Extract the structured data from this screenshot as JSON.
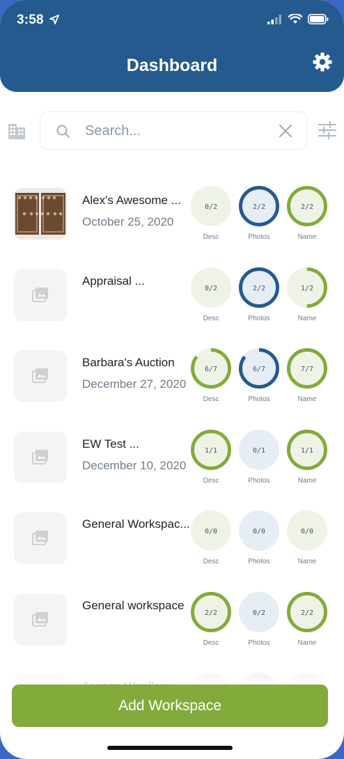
{
  "status_bar": {
    "time": "3:58"
  },
  "header": {
    "title": "Dashboard"
  },
  "search": {
    "placeholder": "Search..."
  },
  "labels": {
    "desc": "Desc",
    "photos": "Photos",
    "name": "Name"
  },
  "colors": {
    "header": "#245a8e",
    "green": "#82ab3b",
    "blue": "#245a8e",
    "green_fill": "#eef3e6",
    "blue_fill": "#e6edf4"
  },
  "workspaces": [
    {
      "title": "Alex's Awesome ...",
      "date": "October 25, 2020",
      "has_photo": true,
      "desc": {
        "text": "0/2",
        "progress": 0
      },
      "photos": {
        "text": "2/2",
        "progress": 1
      },
      "name": {
        "text": "2/2",
        "progress": 1
      }
    },
    {
      "title": "Appraisal ...",
      "date": "",
      "has_photo": false,
      "desc": {
        "text": "0/2",
        "progress": 0
      },
      "photos": {
        "text": "2/2",
        "progress": 1
      },
      "name": {
        "text": "1/2",
        "progress": 0.5
      }
    },
    {
      "title": "Barbara's Auction",
      "date": "December 27, 2020",
      "has_photo": false,
      "desc": {
        "text": "6/7",
        "progress": 0.857
      },
      "photos": {
        "text": "6/7",
        "progress": 0.857
      },
      "name": {
        "text": "7/7",
        "progress": 1
      }
    },
    {
      "title": "EW Test ...",
      "date": "December 10, 2020",
      "has_photo": false,
      "desc": {
        "text": "1/1",
        "progress": 1
      },
      "photos": {
        "text": "0/1",
        "progress": 0
      },
      "name": {
        "text": "1/1",
        "progress": 1
      }
    },
    {
      "title": "General Workspac...",
      "date": "",
      "has_photo": false,
      "desc": {
        "text": "0/0",
        "progress": 0
      },
      "photos": {
        "text": "0/0",
        "progress": 0
      },
      "name": {
        "text": "0/0",
        "progress": 0
      }
    },
    {
      "title": "General workspace",
      "date": "",
      "has_photo": false,
      "desc": {
        "text": "2/2",
        "progress": 1
      },
      "photos": {
        "text": "0/2",
        "progress": 0
      },
      "name": {
        "text": "2/2",
        "progress": 1
      }
    },
    {
      "title": "Joanna Woollam",
      "date": "",
      "has_photo": false,
      "desc": {
        "text": "",
        "progress": 0
      },
      "photos": {
        "text": "",
        "progress": 0
      },
      "name": {
        "text": "",
        "progress": 0
      }
    }
  ],
  "footer": {
    "add_label": "Add Workspace"
  }
}
